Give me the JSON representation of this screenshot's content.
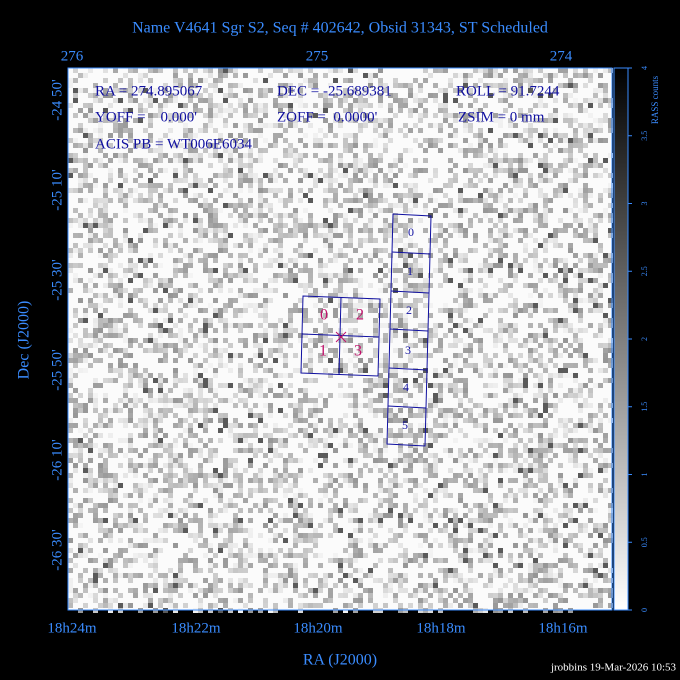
{
  "title": "Name V4641 Sgr S2, Seq # 402642, Obsid 31343, ST Scheduled",
  "top_axis": {
    "ticks": [
      276,
      275,
      274
    ]
  },
  "left_axis": {
    "label": "Dec (J2000)",
    "ticks": [
      "-24 50'",
      "-25 10'",
      "-25 30'",
      "-25 50'",
      "-26 10'",
      "-26 30'"
    ]
  },
  "bottom_axis": {
    "label": "RA (J2000)",
    "ticks": [
      "18h24m",
      "18h22m",
      "18h20m",
      "18h18m",
      "18h16m"
    ]
  },
  "annotations": [
    "RA = 274.895067",
    "DEC = -25.689381",
    "ROLL = 91.7244",
    "YOFF =    0.000'",
    "ZOFF =  0.0000'",
    "ZSIM = 0 mm",
    "ACIS PB = WT006E6034"
  ],
  "acis_i_chips": [
    "0",
    "2",
    "1",
    "3"
  ],
  "acis_s_chips": [
    "0",
    "1",
    "2",
    "3",
    "4",
    "5"
  ],
  "colorbar": {
    "label": "RASS counts",
    "lim": [
      0,
      4
    ],
    "ticks": [
      0,
      0.5,
      1,
      1.5,
      2,
      2.5,
      3,
      3.5,
      4
    ]
  },
  "footer": "jrobbins 19-Mar-2026 10:53"
}
